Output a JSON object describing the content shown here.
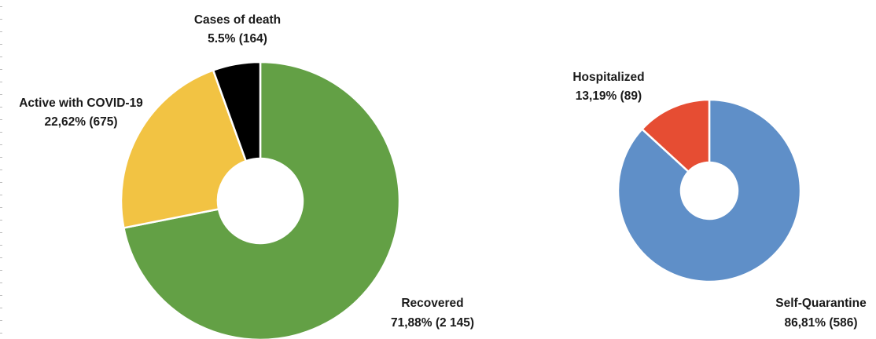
{
  "chart_data": [
    {
      "type": "pie",
      "subtype": "donut",
      "slices": [
        {
          "name": "Recovered",
          "value": 2145,
          "pct_label": "71,88% (2 145)",
          "color": "#63a045"
        },
        {
          "name": "Active with COVID-19",
          "value": 675,
          "pct_label": "22,62% (675)",
          "color": "#f2c343"
        },
        {
          "name": "Cases of death",
          "value": 164,
          "pct_label": "5.5% (164)",
          "color": "#000000"
        }
      ]
    },
    {
      "type": "pie",
      "subtype": "donut",
      "slices": [
        {
          "name": "Self-Quarantine",
          "value": 586,
          "pct_label": "86,81% (586)",
          "color": "#5f8fc8"
        },
        {
          "name": "Hospitalized",
          "value": 89,
          "pct_label": "13,19% (89)",
          "color": "#e64d33"
        }
      ]
    }
  ]
}
